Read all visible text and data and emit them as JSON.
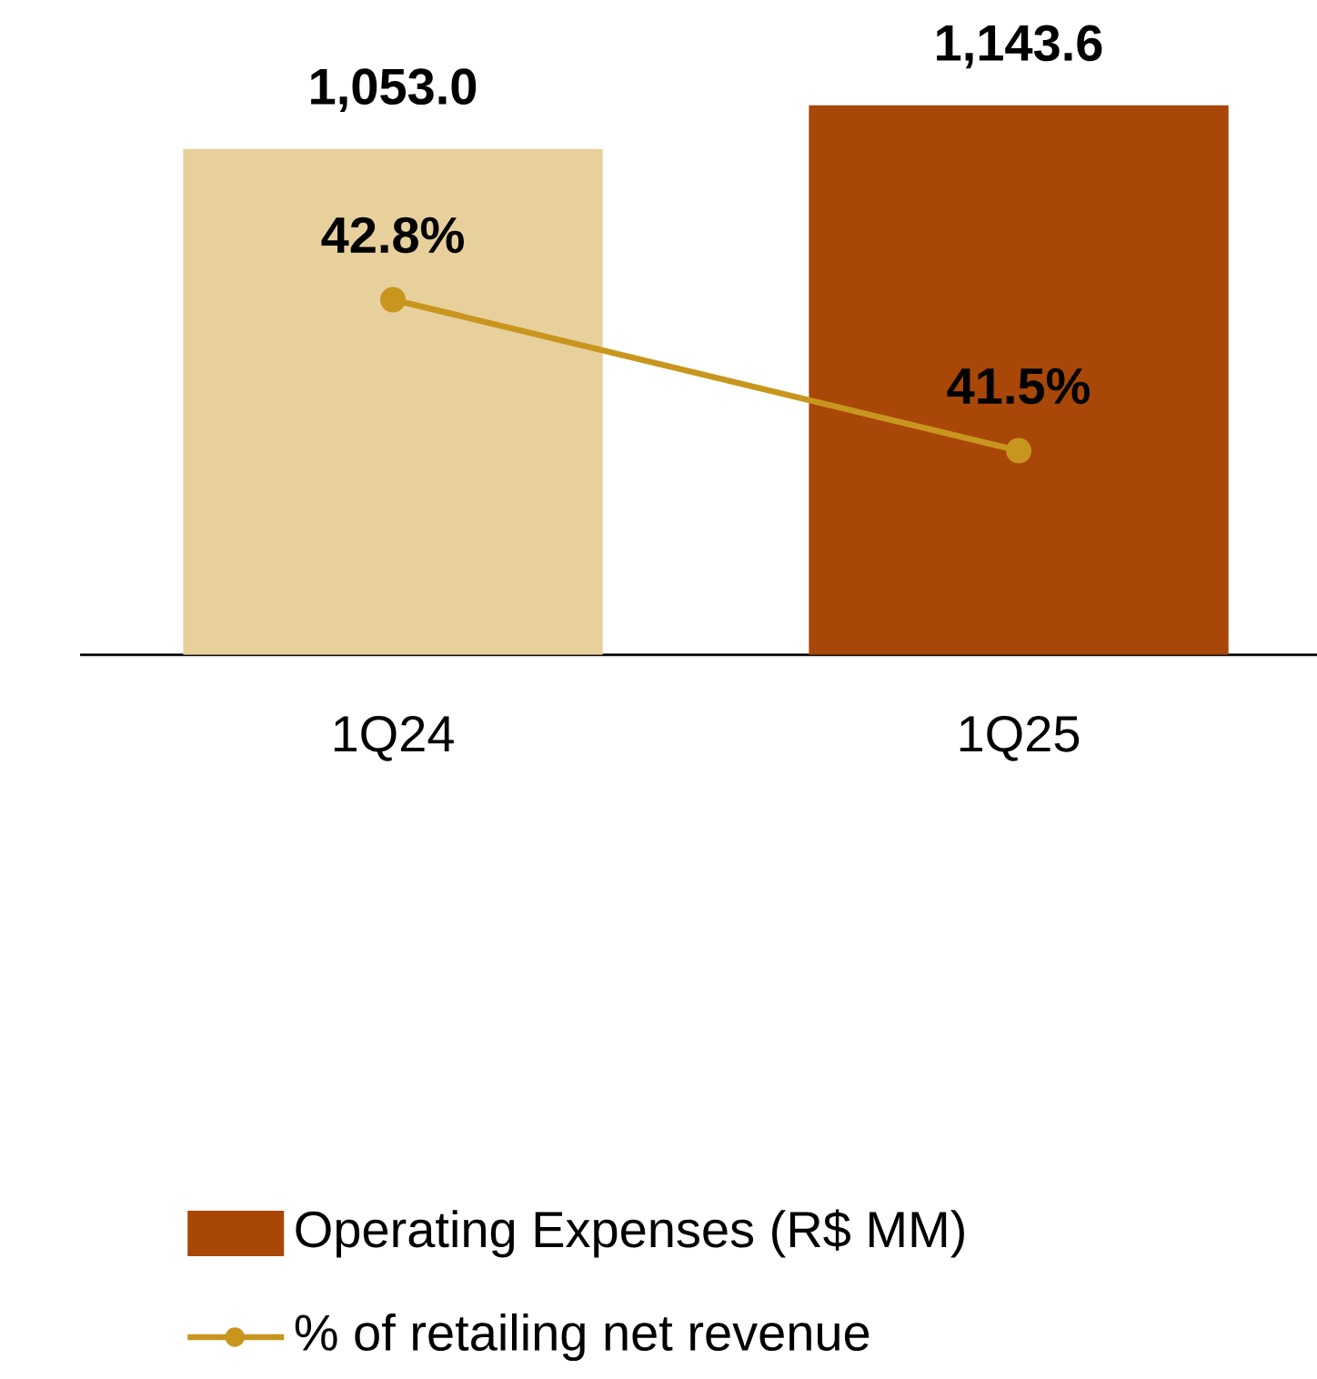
{
  "chart_data": {
    "type": "bar",
    "categories": [
      "1Q24",
      "1Q25"
    ],
    "series": [
      {
        "name": "Operating Expenses (R$ MM)",
        "color": "#a84707",
        "colors": [
          "#e8d09c",
          "#a84707"
        ],
        "values": [
          1053.0,
          1143.6
        ],
        "value_labels": [
          "1,053.0",
          "1,143.6"
        ]
      },
      {
        "name": "% of retailing net revenue",
        "type": "line",
        "axis": "y2",
        "color": "#c8961e",
        "values": [
          42.8,
          41.5
        ],
        "value_labels": [
          "42.8%",
          "41.5%"
        ]
      }
    ],
    "tick_labels": "x",
    "marker": "circle",
    "line_style": "solid",
    "legend": "bottom"
  }
}
